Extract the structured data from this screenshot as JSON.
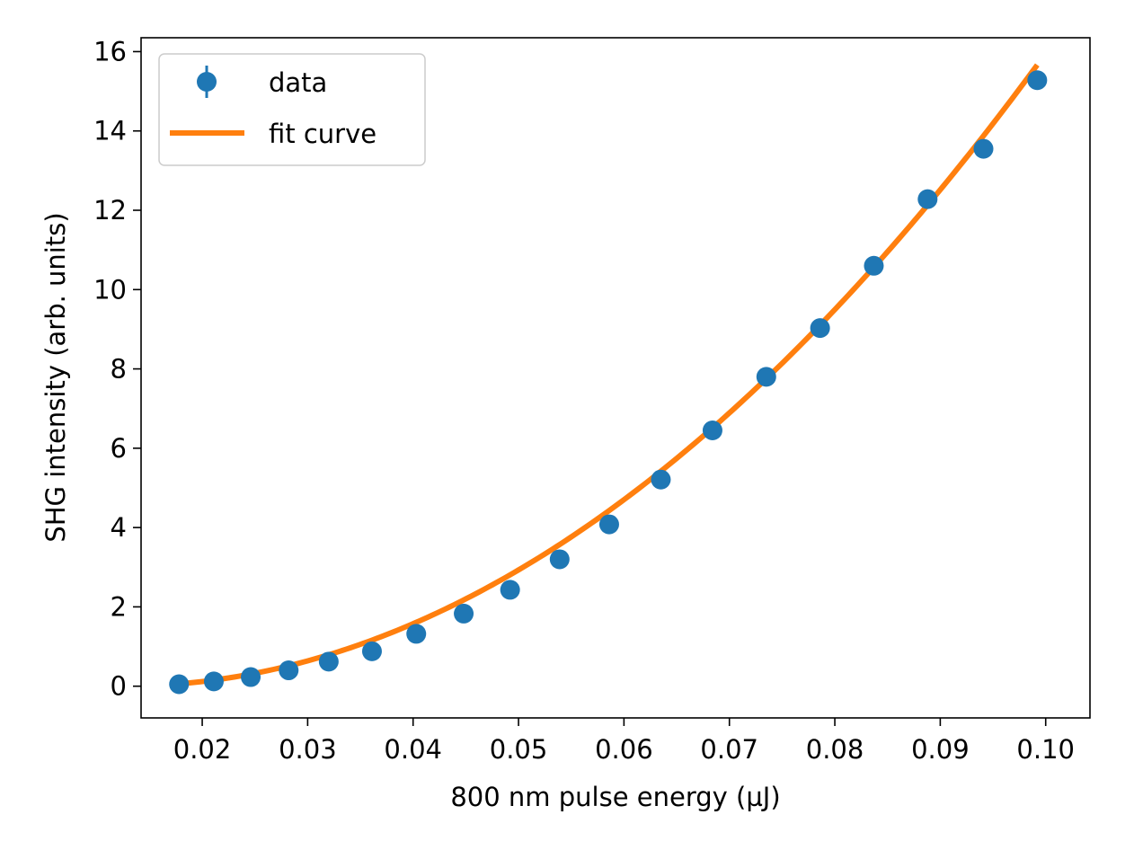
{
  "chart_data": {
    "type": "scatter",
    "title": "",
    "xlabel": "800 nm pulse energy (µJ)",
    "ylabel": "SHG intensity (arb. units)",
    "xlim": [
      0.0142,
      0.1042
    ],
    "ylim": [
      -0.8,
      16.35
    ],
    "xticks": [
      0.02,
      0.03,
      0.04,
      0.05,
      0.06,
      0.07,
      0.08,
      0.09,
      0.1
    ],
    "xtick_labels": [
      "0.02",
      "0.03",
      "0.04",
      "0.05",
      "0.06",
      "0.07",
      "0.08",
      "0.09",
      "0.10"
    ],
    "yticks": [
      0,
      2,
      4,
      6,
      8,
      10,
      12,
      14,
      16
    ],
    "ytick_labels": [
      "0",
      "2",
      "4",
      "6",
      "8",
      "10",
      "12",
      "14",
      "16"
    ],
    "grid": false,
    "legend": {
      "position": "top-left"
    },
    "colors": {
      "data": "#1f77b4",
      "fit": "#ff7f0e"
    },
    "series": [
      {
        "name": "data",
        "kind": "errorbar-points",
        "x": [
          0.0178,
          0.0211,
          0.0246,
          0.0282,
          0.032,
          0.0361,
          0.0403,
          0.0448,
          0.0492,
          0.0539,
          0.0586,
          0.0635,
          0.0684,
          0.0735,
          0.0786,
          0.0837,
          0.0888,
          0.0941,
          0.0992
        ],
        "y": [
          0.05,
          0.12,
          0.23,
          0.4,
          0.62,
          0.88,
          1.32,
          1.83,
          2.43,
          3.2,
          4.08,
          5.21,
          6.45,
          7.8,
          9.03,
          10.6,
          12.28,
          13.55,
          15.28
        ],
        "yerr": [
          0.1,
          0.1,
          0.1,
          0.1,
          0.1,
          0.1,
          0.1,
          0.1,
          0.1,
          0.1,
          0.1,
          0.1,
          0.1,
          0.1,
          0.1,
          0.1,
          0.1,
          0.1,
          0.1
        ]
      },
      {
        "name": "fit curve",
        "kind": "line",
        "model": "a*(x - x0)^2",
        "params": {
          "a": 2084,
          "x0": 0.0125
        },
        "x_range": [
          0.0178,
          0.0992
        ]
      }
    ]
  }
}
